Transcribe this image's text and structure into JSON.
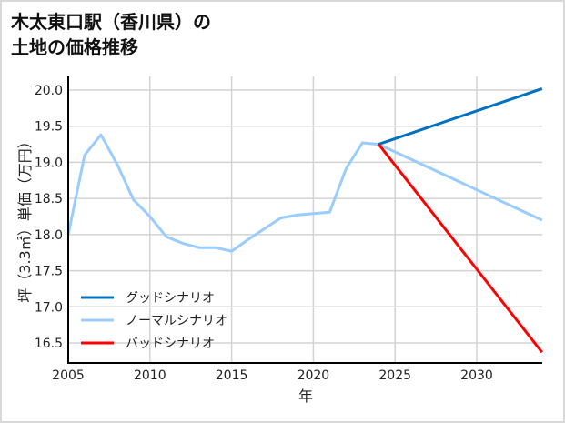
{
  "title": "木太東口駅（香川県）の\n土地の価格推移",
  "chart_data": {
    "type": "line",
    "title": "木太東口駅（香川県）の土地の価格推移",
    "xlabel": "年",
    "ylabel": "坪（3.3㎡）単価（万円）",
    "xlim": [
      2005,
      2034
    ],
    "ylim": [
      16.2,
      20.2
    ],
    "grid": true,
    "legend_position": "lower left",
    "x_ticks": [
      2005,
      2010,
      2015,
      2020,
      2025,
      2030
    ],
    "y_ticks": [
      16.5,
      17.0,
      17.5,
      18.0,
      18.5,
      19.0,
      19.5,
      20.0
    ],
    "x_tick_labels": [
      "2005",
      "2010",
      "2015",
      "2020",
      "2025",
      "2030"
    ],
    "y_tick_labels": [
      "16.5",
      "17.0",
      "17.5",
      "18.0",
      "18.5",
      "19.0",
      "19.5",
      "20.0"
    ],
    "series": [
      {
        "name": "ノーマルシナリオ (実績)",
        "color": "#99ccff",
        "x": [
          2005,
          2006,
          2007,
          2008,
          2009,
          2010,
          2011,
          2012,
          2013,
          2014,
          2015,
          2016,
          2017,
          2018,
          2019,
          2020,
          2021,
          2022,
          2023,
          2024
        ],
        "values": [
          18.0,
          19.1,
          19.38,
          18.97,
          18.48,
          18.25,
          17.97,
          17.88,
          17.82,
          17.82,
          17.77,
          17.93,
          18.08,
          18.23,
          18.27,
          18.29,
          18.31,
          18.91,
          19.27,
          19.25
        ]
      },
      {
        "name": "グッドシナリオ",
        "color": "#0070c0",
        "x": [
          2024,
          2034
        ],
        "values": [
          19.25,
          20.02
        ]
      },
      {
        "name": "ノーマルシナリオ",
        "color": "#99ccff",
        "x": [
          2024,
          2034
        ],
        "values": [
          19.25,
          18.2
        ]
      },
      {
        "name": "バッドシナリオ",
        "color": "#ff0000",
        "x": [
          2024,
          2034
        ],
        "values": [
          19.25,
          16.37
        ]
      }
    ]
  },
  "legend": [
    {
      "label": "グッドシナリオ",
      "color": "#0070c0"
    },
    {
      "label": "ノーマルシナリオ",
      "color": "#99ccff"
    },
    {
      "label": "バッドシナリオ",
      "color": "#ff0000"
    }
  ]
}
